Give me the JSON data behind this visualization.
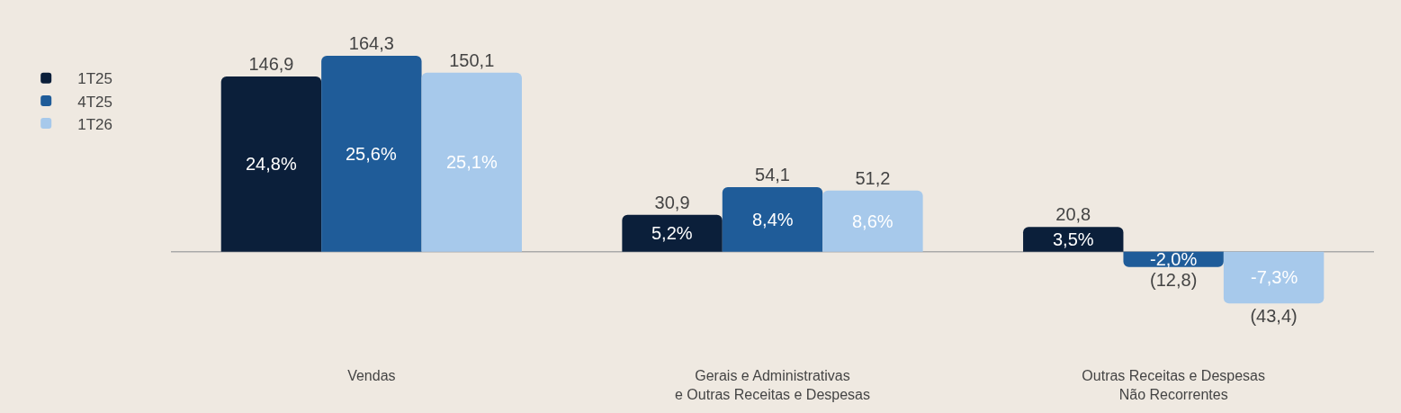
{
  "chart_data": {
    "type": "bar",
    "categories": [
      "Vendas",
      "Gerais e Administrativas\ne Outras Receitas e Despesas",
      "Outras Receitas e Despesas\nNão Recorrentes"
    ],
    "series": [
      {
        "name": "1T25",
        "color": "#0b1f3a",
        "values": [
          146.9,
          30.9,
          20.8
        ],
        "value_labels": [
          "146,9",
          "30,9",
          "20,8"
        ]
      },
      {
        "name": "4T25",
        "color": "#1f5c99",
        "values": [
          164.3,
          54.1,
          -12.8
        ],
        "value_labels": [
          "164,3",
          "54,1",
          "(12,8)"
        ]
      },
      {
        "name": "1T26",
        "color": "#a7c9eb",
        "values": [
          150.1,
          51.2,
          -43.4
        ],
        "value_labels": [
          "150,1",
          "51,2",
          "(43,4)"
        ]
      }
    ],
    "annotations": [
      "24,8%",
      "25,6%",
      "25,1%",
      "5,2%",
      "8,4%",
      "8,6%",
      "3,5%",
      "-2,0%",
      "-7,3%"
    ],
    "legend": "left"
  }
}
